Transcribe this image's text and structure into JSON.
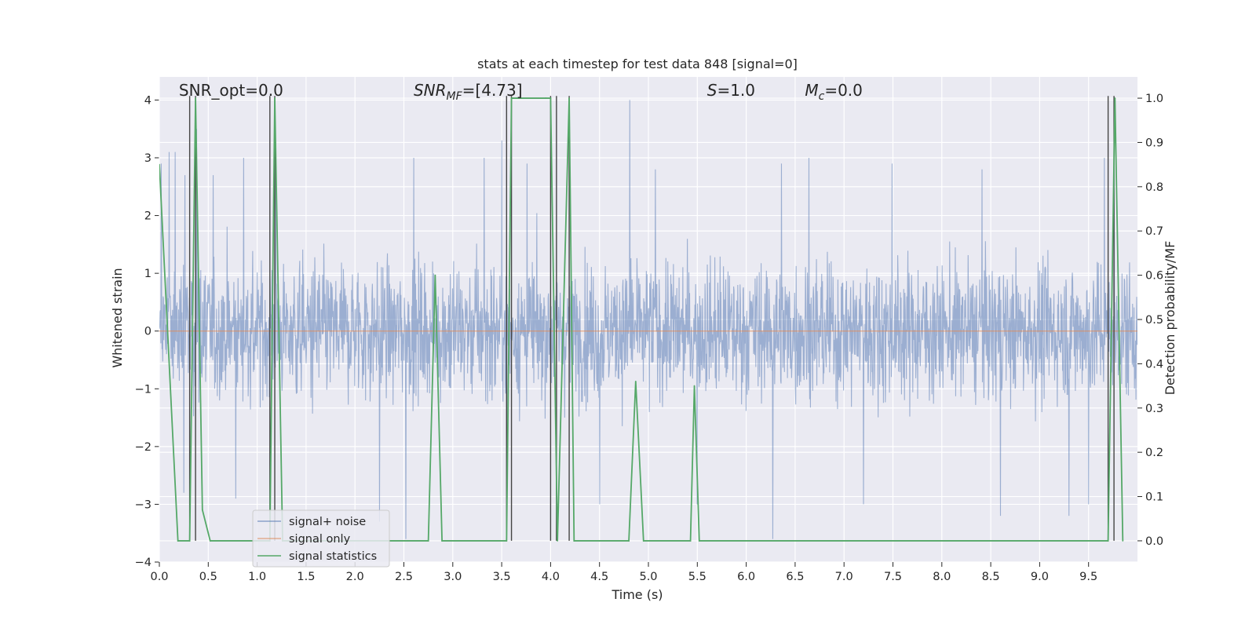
{
  "chart_data": {
    "type": "line",
    "title": "stats at each timestep for test data 848 [signal=0]",
    "xlabel": "Time (s)",
    "ylabel": "Whitened strain",
    "y2label": "Detection probability/MF",
    "xlim": [
      0.0,
      10.0
    ],
    "ylim": [
      -4.0,
      4.4
    ],
    "y2lim": [
      -0.048,
      1.048
    ],
    "x_ticks": [
      "0.0",
      "0.5",
      "1.0",
      "1.5",
      "2.0",
      "2.5",
      "3.0",
      "3.5",
      "4.0",
      "4.5",
      "5.0",
      "5.5",
      "6.0",
      "6.5",
      "7.0",
      "7.5",
      "8.0",
      "8.5",
      "9.0",
      "9.5"
    ],
    "y_ticks": [
      "4",
      "3",
      "2",
      "1",
      "0",
      "−1",
      "−2",
      "−3",
      "−4"
    ],
    "y2_ticks": [
      "1.0",
      "0.9",
      "0.8",
      "0.7",
      "0.6",
      "0.5",
      "0.4",
      "0.3",
      "0.2",
      "0.1",
      "0.0"
    ],
    "grid": true,
    "legend_position": "lower-left",
    "colors": {
      "noise": "#4c72b0",
      "signal": "#dd8452",
      "stats": "#55a868",
      "vlines": "#444444",
      "axes_bg": "#eaeaf2"
    },
    "series": [
      {
        "name": "signal+ noise",
        "axis": "left",
        "description_of_style": "dense noise trace",
        "envelope_peaks": [
          [
            0.02,
            2.9
          ],
          [
            0.1,
            3.1
          ],
          [
            0.16,
            3.1
          ],
          [
            0.26,
            2.7
          ],
          [
            0.38,
            3.5
          ],
          [
            0.55,
            2.7
          ],
          [
            0.86,
            3.0
          ],
          [
            1.19,
            2.9
          ],
          [
            2.6,
            3.0
          ],
          [
            3.32,
            3.0
          ],
          [
            3.5,
            3.3
          ],
          [
            3.76,
            2.9
          ],
          [
            4.5,
            3.1
          ],
          [
            4.81,
            4.0
          ],
          [
            5.07,
            2.8
          ],
          [
            6.36,
            2.9
          ],
          [
            6.64,
            3.0
          ],
          [
            7.49,
            2.9
          ],
          [
            8.41,
            2.8
          ],
          [
            9.66,
            3.0
          ],
          [
            9.76,
            3.0
          ]
        ],
        "envelope_troughs": [
          [
            0.25,
            -2.8
          ],
          [
            0.78,
            -2.9
          ],
          [
            2.25,
            -3.3
          ],
          [
            2.52,
            -3.6
          ],
          [
            3.55,
            -3.2
          ],
          [
            4.5,
            -3.0
          ],
          [
            5.5,
            -3.0
          ],
          [
            6.27,
            -3.6
          ],
          [
            7.2,
            -3.0
          ],
          [
            8.6,
            -3.2
          ],
          [
            9.3,
            -3.2
          ],
          [
            9.5,
            -3.0
          ]
        ]
      },
      {
        "name": "signal only",
        "axis": "left",
        "x": [
          0.0,
          10.0
        ],
        "y": [
          0.0,
          0.0
        ]
      },
      {
        "name": "signal statistics",
        "axis": "right",
        "x": [
          0.0,
          0.19,
          0.31,
          0.37,
          0.44,
          0.52,
          1.13,
          1.18,
          1.26,
          2.75,
          2.82,
          2.89,
          3.55,
          3.6,
          3.65,
          3.95,
          4.0,
          4.07,
          4.19,
          4.24,
          4.5,
          4.8,
          4.87,
          4.95,
          5.43,
          5.47,
          5.52,
          9.7,
          9.77,
          9.85
        ],
        "y": [
          0.85,
          0.0,
          0.0,
          1.0,
          0.07,
          0.0,
          0.0,
          1.0,
          0.0,
          0.0,
          0.6,
          0.0,
          0.0,
          1.0,
          1.0,
          1.0,
          1.0,
          0.0,
          1.0,
          0.0,
          0.0,
          0.0,
          0.36,
          0.0,
          0.0,
          0.35,
          0.0,
          0.0,
          1.0,
          0.0
        ]
      }
    ],
    "vlines": [
      0.31,
      0.37,
      1.13,
      1.18,
      3.55,
      3.6,
      4.0,
      4.06,
      4.19,
      9.7,
      9.76
    ],
    "annotations": [
      {
        "text": "SNR_opt=0.0",
        "x": 0.2
      },
      {
        "text": "SNR",
        "sub": "MF",
        "suffix": "=[4.73]",
        "x": 2.6
      },
      {
        "text": "S",
        "suffix": "=1.0",
        "x": 5.6
      },
      {
        "text": "M",
        "sub": "c",
        "suffix": "=0.0",
        "x": 6.6
      }
    ],
    "legend": [
      {
        "label": "signal+ noise",
        "color": "#4c72b0"
      },
      {
        "label": "signal only",
        "color": "#dd8452"
      },
      {
        "label": "signal statistics",
        "color": "#55a868"
      }
    ]
  }
}
